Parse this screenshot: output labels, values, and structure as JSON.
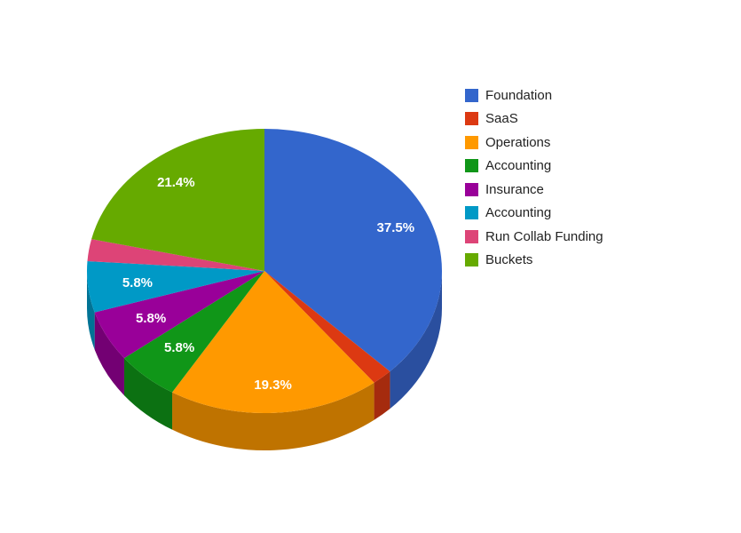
{
  "chart_data": {
    "type": "pie",
    "style": "3d",
    "legend_position": "right",
    "slices": [
      {
        "label": "Foundation",
        "value": 37.5,
        "display": "37.5%",
        "color": "#3366cc",
        "side_color": "#2a4f9f"
      },
      {
        "label": "SaaS",
        "value": 1.9,
        "display": "",
        "color": "#dc3912",
        "side_color": "#a52b0e"
      },
      {
        "label": "Operations",
        "value": 19.3,
        "display": "19.3%",
        "color": "#ff9900",
        "side_color": "#bf7300"
      },
      {
        "label": "Accounting",
        "value": 5.8,
        "display": "5.8%",
        "color": "#109618",
        "side_color": "#0c7112"
      },
      {
        "label": "Insurance",
        "value": 5.8,
        "display": "5.8%",
        "color": "#990099",
        "side_color": "#730073"
      },
      {
        "label": "Accounting",
        "value": 5.8,
        "display": "5.8%",
        "color": "#0099c6",
        "side_color": "#007395"
      },
      {
        "label": "Run Collab Funding",
        "value": 2.5,
        "display": "",
        "color": "#dd4477",
        "side_color": "#a63359"
      },
      {
        "label": "Buckets",
        "value": 21.4,
        "display": "21.4%",
        "color": "#66aa00",
        "side_color": "#4d8000"
      }
    ]
  }
}
